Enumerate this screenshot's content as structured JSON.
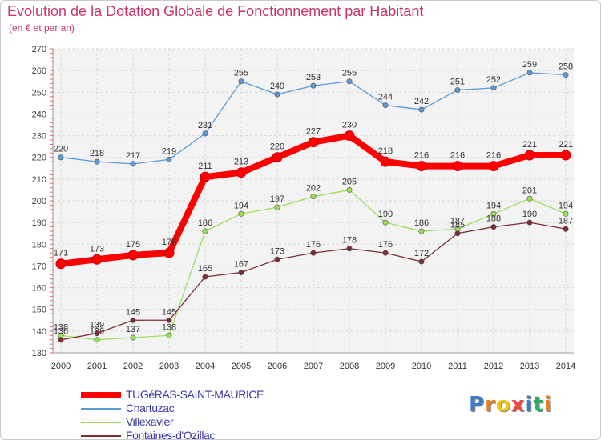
{
  "header": {
    "title": "Evolution de la Dotation Globale de Fonctionnement par Habitant",
    "subtitle": "(en € et par an)"
  },
  "logo": {
    "letters": [
      "P",
      "r",
      "o",
      "x",
      "i",
      "t",
      "i"
    ],
    "colors": [
      "#3d7cc9",
      "#e67e22",
      "#f1c40f",
      "#e74c3c",
      "#3d7cc9",
      "#27ae60",
      "#e67e22"
    ]
  },
  "chart_data": {
    "type": "line",
    "title": "Evolution de la Dotation Globale de Fonctionnement par Habitant",
    "subtitle": "(en € et par an)",
    "xlabel": "",
    "ylabel": "",
    "ylim": [
      130,
      270
    ],
    "yticks": [
      130,
      140,
      150,
      160,
      170,
      180,
      190,
      200,
      210,
      220,
      230,
      240,
      250,
      260,
      270
    ],
    "grid": true,
    "legend_position": "bottom-left",
    "x": [
      "2000",
      "2001",
      "2002",
      "2003",
      "2004",
      "2005",
      "2006",
      "2007",
      "2008",
      "2009",
      "2010",
      "2011",
      "2012",
      "2013",
      "2014"
    ],
    "series": [
      {
        "name": "Chartuzac",
        "color": "#5b9bd5",
        "values": [
          220,
          218,
          217,
          219,
          231,
          255,
          249,
          253,
          255,
          244,
          242,
          251,
          252,
          259,
          258
        ]
      },
      {
        "name": "Villexavier",
        "color": "#99e05a",
        "values": [
          138,
          136,
          137,
          138,
          186,
          194,
          197,
          202,
          205,
          190,
          186,
          187,
          194,
          201,
          194
        ]
      },
      {
        "name": "Fontaines-d'Ozillac",
        "color": "#7b2e35",
        "values": [
          136,
          139,
          145,
          145,
          165,
          167,
          173,
          176,
          178,
          176,
          172,
          185,
          188,
          190,
          187
        ]
      },
      {
        "name": "TUGéRAS-SAINT-MAURICE",
        "color": "#ff0000",
        "values": [
          171,
          173,
          175,
          176,
          211,
          213,
          220,
          227,
          230,
          218,
          216,
          216,
          216,
          221,
          221
        ]
      }
    ]
  }
}
